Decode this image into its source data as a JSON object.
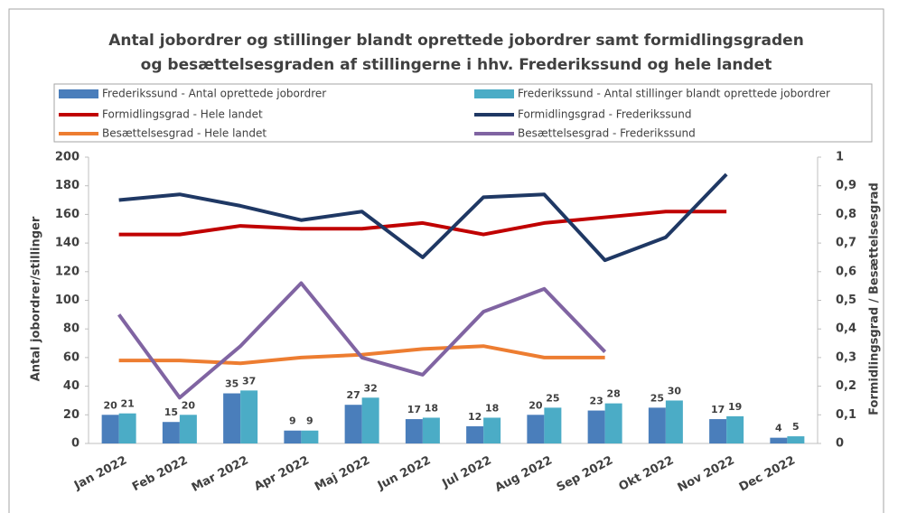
{
  "chart_data": {
    "type": "bar-line",
    "title": [
      "Antal jobordrer og stillinger blandt oprettede jobordrer samt formidlingsgraden",
      "og besættelsesgraden af stillingerne i hhv. Frederikssund og hele landet"
    ],
    "y_label": "Antal jobordrer/stillinger",
    "y2_label": "Formidlingsgrad / Besættelsesgrad",
    "categories": [
      "Jan 2022",
      "Feb 2022",
      "Mar 2022",
      "Apr 2022",
      "Maj 2022",
      "Jun 2022",
      "Jul 2022",
      "Aug 2022",
      "Sep 2022",
      "Okt 2022",
      "Nov 2022",
      "Dec 2022"
    ],
    "ylim": [
      0,
      200
    ],
    "yticks": [
      0,
      20,
      40,
      60,
      80,
      100,
      120,
      140,
      160,
      180,
      200
    ],
    "y2lim": [
      0,
      1
    ],
    "y2ticks": [
      0,
      {
        "value": 0.1,
        "label": "0,1"
      },
      {
        "value": 0.2,
        "label": "0,2"
      },
      {
        "value": 0.3,
        "label": "0,3"
      },
      {
        "value": 0.4,
        "label": "0,4"
      },
      {
        "value": 0.5,
        "label": "0,5"
      },
      {
        "value": 0.6,
        "label": "0,6"
      },
      {
        "value": 0.7,
        "label": "0,7"
      },
      {
        "value": 0.8,
        "label": "0,8"
      },
      {
        "value": 0.9,
        "label": "0,9"
      },
      1
    ],
    "series": [
      {
        "name": "Frederikssund - Antal oprettede jobordrer",
        "kind": "bar",
        "color": "#4a7ebb",
        "values": [
          20,
          15,
          35,
          9,
          27,
          17,
          12,
          20,
          23,
          25,
          17,
          4
        ]
      },
      {
        "name": "Frederikssund - Antal stillinger blandt oprettede jobordrer",
        "kind": "bar",
        "color": "#4bacc6",
        "values": [
          21,
          20,
          37,
          9,
          32,
          18,
          18,
          25,
          28,
          30,
          19,
          5
        ]
      },
      {
        "name": "Formidlingsgrad - Hele landet",
        "kind": "line",
        "axis": "y2",
        "color": "#c00000",
        "values": [
          0.73,
          0.73,
          0.76,
          0.75,
          0.75,
          0.77,
          0.73,
          0.77,
          0.79,
          0.81,
          0.81,
          null
        ]
      },
      {
        "name": "Formidlingsgrad - Frederikssund",
        "kind": "line",
        "axis": "y2",
        "color": "#1f3864",
        "values": [
          0.85,
          0.87,
          0.83,
          0.78,
          0.81,
          0.65,
          0.86,
          0.87,
          0.64,
          0.72,
          0.94,
          null
        ]
      },
      {
        "name": "Besættelsesgrad - Hele landet",
        "kind": "line",
        "axis": "y2",
        "color": "#ed7d31",
        "values": [
          0.29,
          0.29,
          0.28,
          0.3,
          0.31,
          0.33,
          0.34,
          0.3,
          0.3,
          null,
          null,
          null
        ]
      },
      {
        "name": "Besættelsesgrad - Frederikssund",
        "kind": "line",
        "axis": "y2",
        "color": "#8064a2",
        "values": [
          0.45,
          0.16,
          0.34,
          0.56,
          0.3,
          0.24,
          0.46,
          0.54,
          0.32,
          null,
          null,
          null
        ]
      }
    ]
  }
}
